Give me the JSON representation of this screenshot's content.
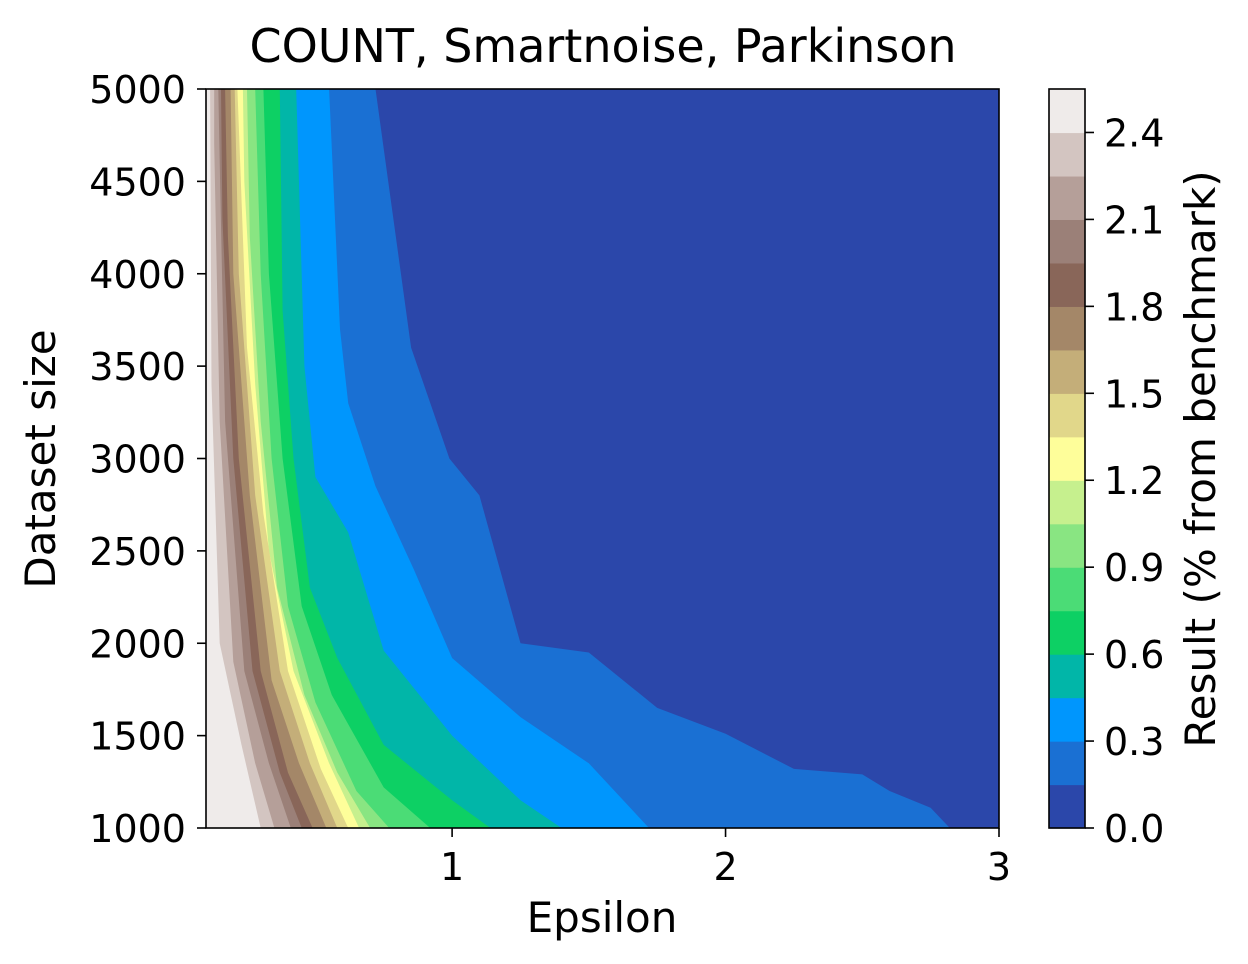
{
  "chart_data": {
    "type": "contourf",
    "title": "COUNT, Smartnoise, Parkinson",
    "xlabel": "Epsilon",
    "ylabel": "Dataset size",
    "xlim": [
      0.1,
      3
    ],
    "ylim": [
      1000,
      5000
    ],
    "x_ticks": [
      1,
      2,
      3
    ],
    "x_tick_labels": [
      "1",
      "2",
      "3"
    ],
    "y_ticks": [
      1000,
      1500,
      2000,
      2500,
      3000,
      3500,
      4000,
      4500,
      5000
    ],
    "y_tick_labels": [
      "1000",
      "1500",
      "2000",
      "2500",
      "3000",
      "3500",
      "4000",
      "4500",
      "5000"
    ],
    "colorbar": {
      "label": "Result (% from benchmark)",
      "levels": [
        0.0,
        0.15,
        0.3,
        0.45,
        0.6,
        0.75,
        0.9,
        1.05,
        1.2,
        1.35,
        1.5,
        1.65,
        1.8,
        1.95,
        2.1,
        2.25,
        2.4,
        2.55
      ],
      "tick_values": [
        0.0,
        0.3,
        0.6,
        0.9,
        1.2,
        1.5,
        1.8,
        2.1,
        2.4
      ],
      "tick_labels": [
        "0.0",
        "0.3",
        "0.6",
        "0.9",
        "1.2",
        "1.5",
        "1.8",
        "2.1",
        "2.4"
      ],
      "colormap": "terrain",
      "band_colors": [
        "#2b47aa",
        "#1a70d3",
        "#0096fd",
        "#01b6a8",
        "#0dd064",
        "#4bdc76",
        "#89e582",
        "#c6f08e",
        "#fefe9a",
        "#e1d78a",
        "#c4ae79",
        "#a48768",
        "#896659",
        "#9b8078",
        "#b59f99",
        "#d3c5c1",
        "#efebea"
      ]
    },
    "contours": [
      {
        "level": 0.15,
        "points": [
          [
            2.82,
            1000
          ],
          [
            2.75,
            1110
          ],
          [
            2.6,
            1200
          ],
          [
            2.5,
            1290
          ],
          [
            2.25,
            1320
          ],
          [
            2.0,
            1510
          ],
          [
            1.75,
            1650
          ],
          [
            1.5,
            1950
          ],
          [
            1.25,
            2000
          ],
          [
            1.1,
            2800
          ],
          [
            0.99,
            3000
          ],
          [
            0.85,
            3600
          ],
          [
            0.72,
            5000
          ]
        ]
      },
      {
        "level": 0.3,
        "points": [
          [
            1.72,
            1000
          ],
          [
            1.5,
            1350
          ],
          [
            1.25,
            1600
          ],
          [
            1.0,
            1920
          ],
          [
            0.86,
            2400
          ],
          [
            0.72,
            2850
          ],
          [
            0.62,
            3300
          ],
          [
            0.59,
            3700
          ],
          [
            0.55,
            5000
          ]
        ]
      },
      {
        "level": 0.45,
        "points": [
          [
            1.4,
            1000
          ],
          [
            1.25,
            1150
          ],
          [
            1.0,
            1500
          ],
          [
            0.75,
            1960
          ],
          [
            0.62,
            2600
          ],
          [
            0.5,
            2900
          ],
          [
            0.46,
            3500
          ],
          [
            0.43,
            5000
          ]
        ]
      },
      {
        "level": 0.6,
        "points": [
          [
            1.14,
            1000
          ],
          [
            1.0,
            1150
          ],
          [
            0.75,
            1450
          ],
          [
            0.58,
            1920
          ],
          [
            0.48,
            2300
          ],
          [
            0.42,
            3000
          ],
          [
            0.38,
            3800
          ],
          [
            0.37,
            5000
          ]
        ]
      },
      {
        "level": 0.75,
        "points": [
          [
            0.92,
            1000
          ],
          [
            0.75,
            1220
          ],
          [
            0.56,
            1720
          ],
          [
            0.45,
            2200
          ],
          [
            0.38,
            3000
          ],
          [
            0.33,
            4000
          ],
          [
            0.31,
            5000
          ]
        ]
      },
      {
        "level": 0.9,
        "points": [
          [
            0.77,
            1000
          ],
          [
            0.65,
            1200
          ],
          [
            0.5,
            1680
          ],
          [
            0.4,
            2200
          ],
          [
            0.34,
            3000
          ],
          [
            0.3,
            4000
          ],
          [
            0.28,
            5000
          ]
        ]
      },
      {
        "level": 1.05,
        "points": [
          [
            0.7,
            1000
          ],
          [
            0.58,
            1300
          ],
          [
            0.46,
            1720
          ],
          [
            0.36,
            2300
          ],
          [
            0.3,
            3200
          ],
          [
            0.26,
            4200
          ],
          [
            0.25,
            5000
          ]
        ]
      },
      {
        "level": 1.2,
        "points": [
          [
            0.66,
            1000
          ],
          [
            0.55,
            1350
          ],
          [
            0.42,
            1850
          ],
          [
            0.33,
            2500
          ],
          [
            0.28,
            3400
          ],
          [
            0.24,
            4500
          ],
          [
            0.235,
            5000
          ]
        ]
      },
      {
        "level": 1.35,
        "points": [
          [
            0.62,
            1000
          ],
          [
            0.52,
            1320
          ],
          [
            0.4,
            1850
          ],
          [
            0.31,
            2700
          ],
          [
            0.25,
            3600
          ],
          [
            0.22,
            4800
          ],
          [
            0.215,
            5000
          ]
        ]
      },
      {
        "level": 1.5,
        "points": [
          [
            0.58,
            1000
          ],
          [
            0.48,
            1350
          ],
          [
            0.37,
            1850
          ],
          [
            0.28,
            2800
          ],
          [
            0.22,
            4000
          ],
          [
            0.205,
            5000
          ]
        ]
      },
      {
        "level": 1.65,
        "points": [
          [
            0.54,
            1000
          ],
          [
            0.44,
            1350
          ],
          [
            0.34,
            1800
          ],
          [
            0.26,
            2800
          ],
          [
            0.2,
            4000
          ],
          [
            0.19,
            5000
          ]
        ]
      },
      {
        "level": 1.8,
        "points": [
          [
            0.49,
            1000
          ],
          [
            0.4,
            1300
          ],
          [
            0.3,
            1850
          ],
          [
            0.22,
            3000
          ],
          [
            0.18,
            4200
          ],
          [
            0.17,
            5000
          ]
        ]
      },
      {
        "level": 1.95,
        "points": [
          [
            0.45,
            1000
          ],
          [
            0.37,
            1300
          ],
          [
            0.27,
            1850
          ],
          [
            0.2,
            3000
          ],
          [
            0.16,
            4300
          ],
          [
            0.155,
            5000
          ]
        ]
      },
      {
        "level": 2.1,
        "points": [
          [
            0.41,
            1000
          ],
          [
            0.33,
            1350
          ],
          [
            0.24,
            1850
          ],
          [
            0.17,
            3200
          ],
          [
            0.15,
            4600
          ],
          [
            0.145,
            5000
          ]
        ]
      },
      {
        "level": 2.25,
        "points": [
          [
            0.35,
            1000
          ],
          [
            0.28,
            1350
          ],
          [
            0.2,
            1900
          ],
          [
            0.15,
            3200
          ],
          [
            0.13,
            4700
          ],
          [
            0.13,
            5000
          ]
        ]
      },
      {
        "level": 2.4,
        "points": [
          [
            0.3,
            1000
          ],
          [
            0.23,
            1450
          ],
          [
            0.15,
            2000
          ],
          [
            0.12,
            3400
          ],
          [
            0.115,
            5000
          ]
        ]
      }
    ]
  }
}
